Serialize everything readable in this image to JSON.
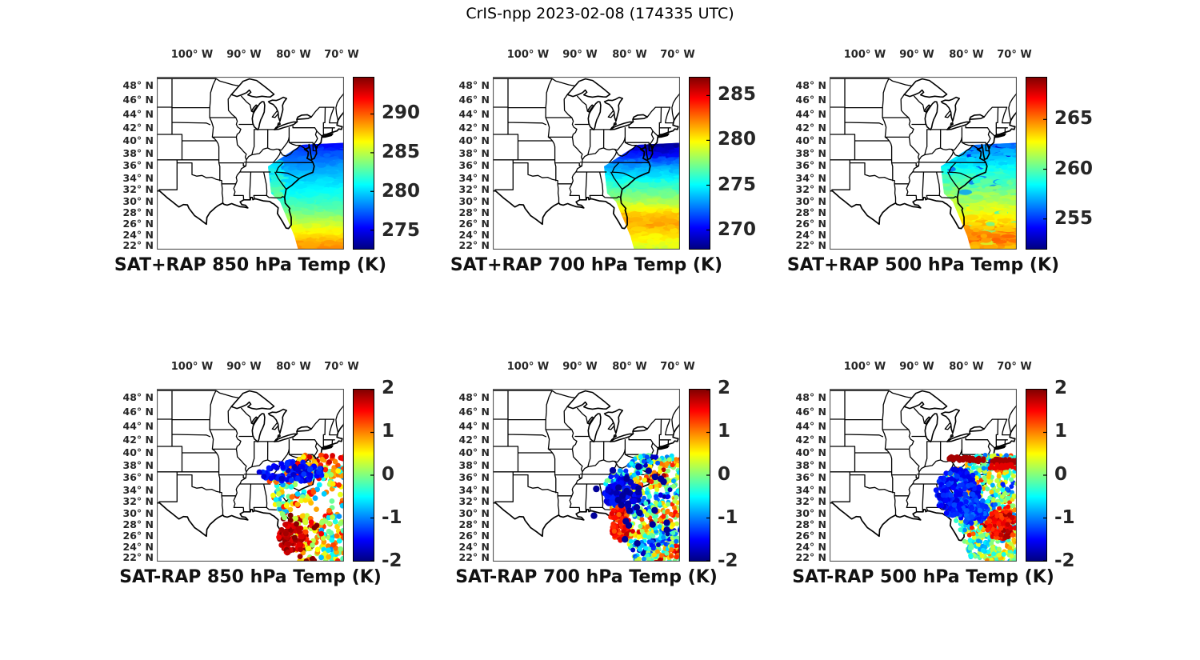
{
  "figure_title": "CrIS-npp 2023-02-08 (174335 UTC)",
  "map_axes": {
    "lon_tick_labels": [
      "100° W",
      "90° W",
      "80° W",
      "70° W"
    ],
    "lat_tick_labels": [
      "48° N",
      "46° N",
      "44° N",
      "42° N",
      "40° N",
      "38° N",
      "36° N",
      "34° N",
      "32° N",
      "30° N",
      "28° N",
      "26° N",
      "24° N",
      "22° N"
    ]
  },
  "panels": [
    {
      "id": "sat-plus-rap-850",
      "title": "SAT+RAP 850 hPa Temp (K)",
      "kind": "heatmap",
      "colorbar_ticks": [
        "290",
        "285",
        "280",
        "275"
      ]
    },
    {
      "id": "sat-plus-rap-700",
      "title": "SAT+RAP 700 hPa Temp (K)",
      "kind": "heatmap",
      "colorbar_ticks": [
        "285",
        "280",
        "275",
        "270"
      ]
    },
    {
      "id": "sat-plus-rap-500",
      "title": "SAT+RAP 500 hPa Temp (K)",
      "kind": "heatmap",
      "colorbar_ticks": [
        "265",
        "260",
        "255"
      ]
    },
    {
      "id": "sat-minus-rap-850",
      "title": "SAT-RAP 850 hPa Temp (K)",
      "kind": "scatter",
      "colorbar_ticks": [
        "2",
        "1",
        "0",
        "-1",
        "-2"
      ]
    },
    {
      "id": "sat-minus-rap-700",
      "title": "SAT-RAP 700 hPa Temp (K)",
      "kind": "scatter",
      "colorbar_ticks": [
        "2",
        "1",
        "0",
        "-1",
        "-2"
      ]
    },
    {
      "id": "sat-minus-rap-500",
      "title": "SAT-RAP 500 hPa Temp (K)",
      "kind": "scatter",
      "colorbar_ticks": [
        "2",
        "1",
        "0",
        "-1",
        "-2"
      ]
    }
  ],
  "chart_data": [
    {
      "type": "heatmap",
      "panel": "top-left",
      "title": "SAT+RAP 850 hPa Temp (K)",
      "level_hPa": 850,
      "units": "K",
      "colormap": "jet",
      "lon_ticks_deg_W": [
        100,
        90,
        80,
        70
      ],
      "lat_ticks_deg_N": [
        48,
        46,
        44,
        42,
        40,
        38,
        36,
        34,
        32,
        30,
        28,
        26,
        24,
        22
      ],
      "colorbar_ticks": [
        290,
        285,
        280,
        275
      ],
      "colorbar_range": [
        272.6,
        294.7
      ],
      "swath_values_K": [
        {
          "lat_N": 38,
          "K": 277
        },
        {
          "lat_N": 34,
          "K": 280
        },
        {
          "lat_N": 30,
          "K": 283
        },
        {
          "lat_N": 26,
          "K": 286
        },
        {
          "lat_N": 23,
          "K": 289
        }
      ],
      "description": "CrIS-npp retrieval swath (SW-NE) over southeastern US and western Atlantic; warms from ~276 K north to ~289 K south"
    },
    {
      "type": "heatmap",
      "panel": "top-middle",
      "title": "SAT+RAP 700 hPa Temp (K)",
      "level_hPa": 700,
      "units": "K",
      "colormap": "jet",
      "lon_ticks_deg_W": [
        100,
        90,
        80,
        70
      ],
      "lat_ticks_deg_N": [
        48,
        46,
        44,
        42,
        40,
        38,
        36,
        34,
        32,
        30,
        28,
        26,
        24,
        22
      ],
      "colorbar_ticks": [
        285,
        280,
        275,
        270
      ],
      "colorbar_range": [
        267.9,
        287.0
      ],
      "swath_values_K": [
        {
          "lat_N": 38,
          "K": 270
        },
        {
          "lat_N": 34,
          "K": 275
        },
        {
          "lat_N": 30,
          "K": 278
        },
        {
          "lat_N": 27,
          "K": 281
        },
        {
          "lat_N": 23,
          "K": 279.5
        }
      ],
      "description": "Dark blue (~269 K) at northern swath edge, cyan mid-swath, orange band ~26-30N, yellow at southern edge"
    },
    {
      "type": "heatmap",
      "panel": "top-right",
      "title": "SAT+RAP 500 hPa Temp (K)",
      "level_hPa": 500,
      "units": "K",
      "colormap": "jet",
      "lon_ticks_deg_W": [
        100,
        90,
        80,
        70
      ],
      "lat_ticks_deg_N": [
        48,
        46,
        44,
        42,
        40,
        38,
        36,
        34,
        32,
        30,
        28,
        26,
        24,
        22
      ],
      "colorbar_ticks": [
        265,
        260,
        255
      ],
      "colorbar_range": [
        252.0,
        269.2
      ],
      "swath_values_K": [
        {
          "lat_N": 38,
          "K": 256
        },
        {
          "lat_N": 34,
          "K": 259
        },
        {
          "lat_N": 30,
          "K": 261
        },
        {
          "lat_N": 26,
          "K": 263.5
        },
        {
          "lat_N": 23,
          "K": 264.5
        }
      ],
      "description": "Speckled blue/cyan north, cyan-green mid, yellow-orange toward southern edge"
    },
    {
      "type": "scatter",
      "panel": "bottom-left",
      "title": "SAT-RAP 850 hPa Temp (K)",
      "level_hPa": 850,
      "units": "K",
      "colormap": "jet",
      "lon_ticks_deg_W": [
        100,
        90,
        80,
        70
      ],
      "lat_ticks_deg_N": [
        48,
        46,
        44,
        42,
        40,
        38,
        36,
        34,
        32,
        30,
        28,
        26,
        24,
        22
      ],
      "colorbar_ticks": [
        2,
        1,
        0,
        -1,
        -2
      ],
      "colorbar_range": [
        -2,
        2
      ],
      "features": [
        {
          "region": "35-38N mid-Atlantic coast",
          "difference_K": -2
        },
        {
          "region": "24-29N east of Florida",
          "difference_K": 2
        },
        {
          "region": "swath top 38-40N",
          "difference_K": 1
        },
        {
          "region": "elsewhere",
          "difference_K": "mixed within ±1"
        }
      ]
    },
    {
      "type": "scatter",
      "panel": "bottom-middle",
      "title": "SAT-RAP 700 hPa Temp (K)",
      "level_hPa": 700,
      "units": "K",
      "colormap": "jet",
      "lon_ticks_deg_W": [
        100,
        90,
        80,
        70
      ],
      "lat_ticks_deg_N": [
        48,
        46,
        44,
        42,
        40,
        38,
        36,
        34,
        32,
        30,
        28,
        26,
        24,
        22
      ],
      "colorbar_ticks": [
        2,
        1,
        0,
        -1,
        -2
      ],
      "colorbar_range": [
        -2,
        2
      ],
      "features": [
        {
          "region": "31-34N off Carolinas",
          "difference_K": -2
        },
        {
          "region": "25-30N near Florida coast",
          "difference_K": 1.5
        },
        {
          "region": "dense swath",
          "difference_K": "streaky mix ±1"
        }
      ]
    },
    {
      "type": "scatter",
      "panel": "bottom-right",
      "title": "SAT-RAP 500 hPa Temp (K)",
      "level_hPa": 500,
      "units": "K",
      "colormap": "jet",
      "lon_ticks_deg_W": [
        100,
        90,
        80,
        70
      ],
      "lat_ticks_deg_N": [
        48,
        46,
        44,
        42,
        40,
        38,
        36,
        34,
        32,
        30,
        28,
        26,
        24,
        22
      ],
      "colorbar_ticks": [
        2,
        1,
        0,
        -1,
        -2
      ],
      "colorbar_range": [
        -2,
        2
      ],
      "features": [
        {
          "region": "28-35N broad area",
          "difference_K": -1.7
        },
        {
          "region": "~37N streak across swath",
          "difference_K": 2
        },
        {
          "region": "26-30N southeast corner",
          "difference_K": 1.5
        },
        {
          "region": "south of 25N",
          "difference_K": "mixed ±0.8"
        }
      ]
    }
  ]
}
